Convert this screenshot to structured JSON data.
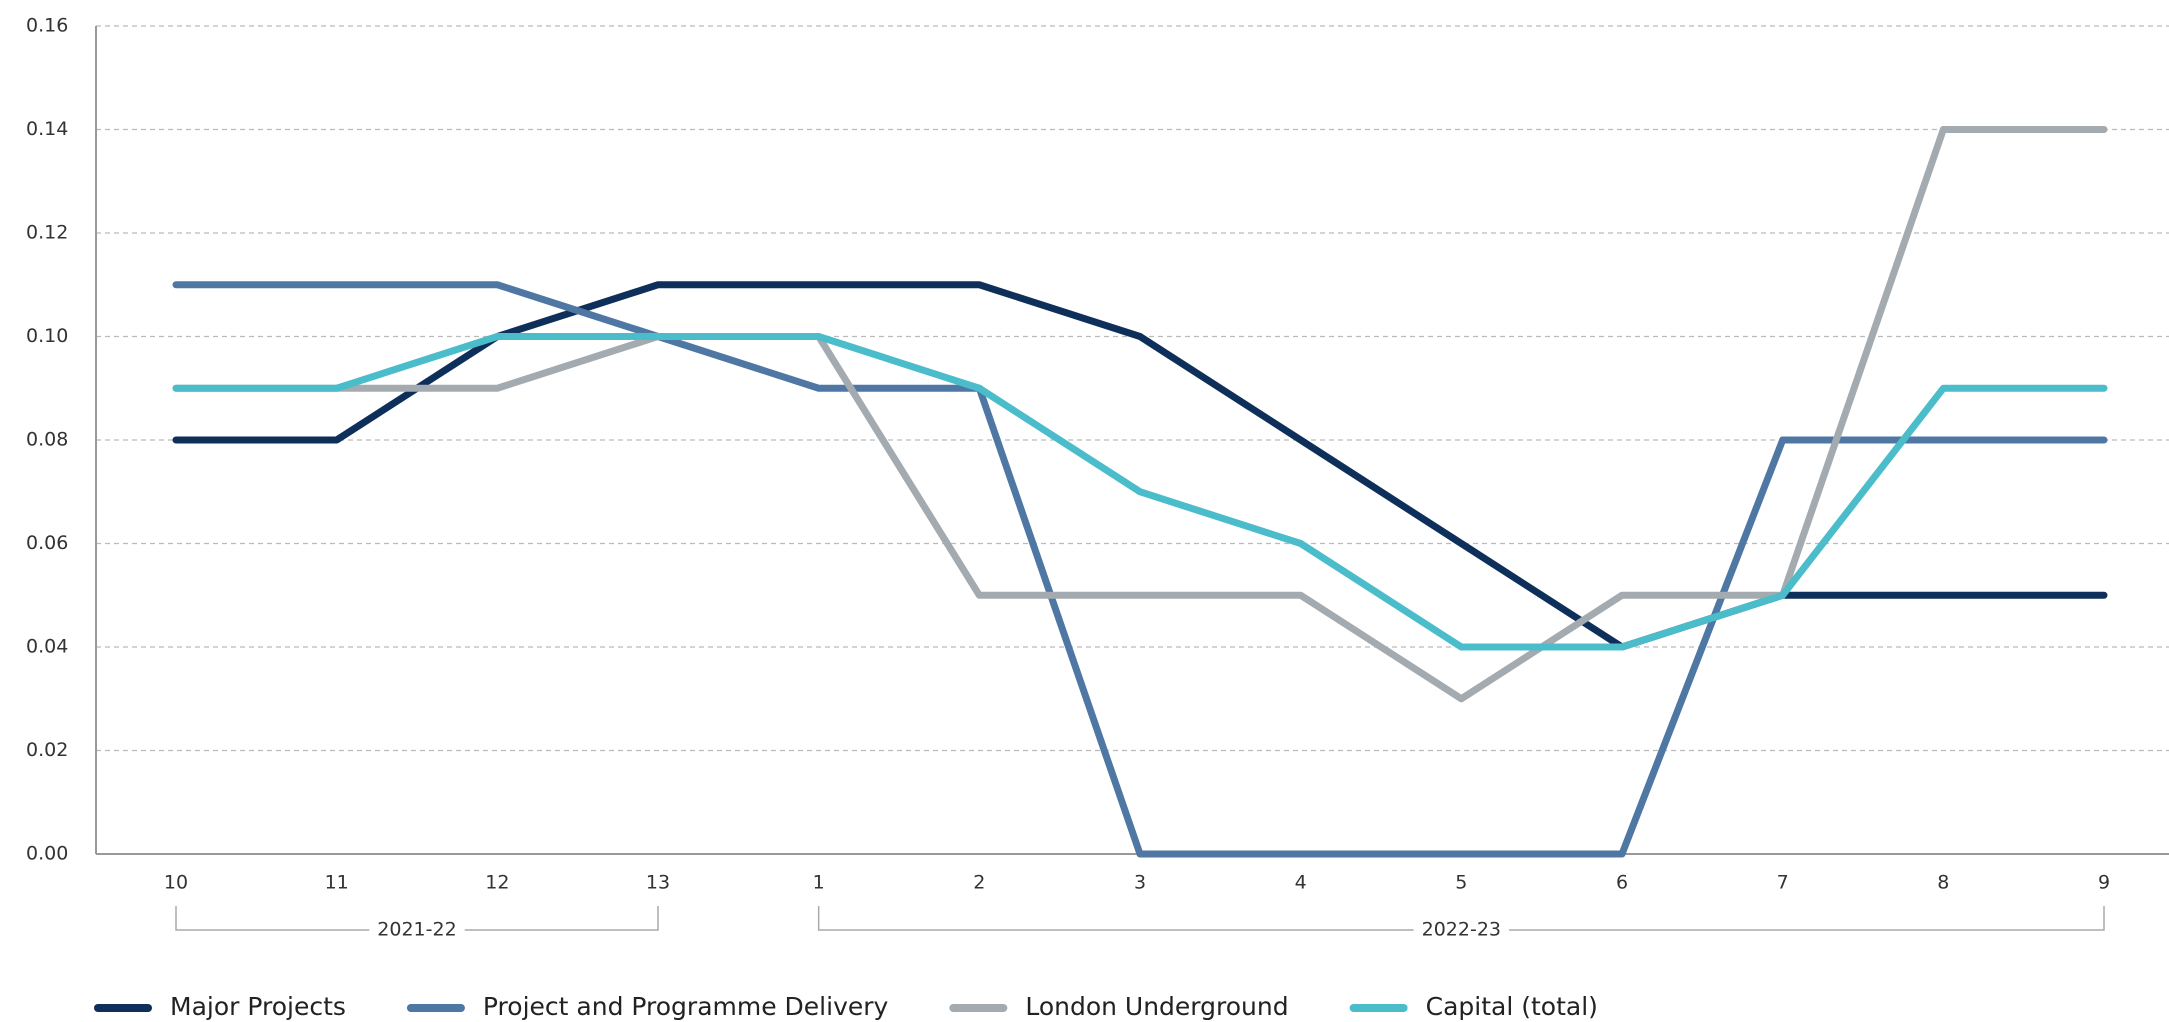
{
  "chart_data": {
    "type": "line",
    "categories": [
      "10",
      "11",
      "12",
      "13",
      "1",
      "2",
      "3",
      "4",
      "5",
      "6",
      "7",
      "8",
      "9"
    ],
    "x_groups": [
      {
        "label": "2021-22",
        "categories": [
          "10",
          "11",
          "12",
          "13"
        ]
      },
      {
        "label": "2022-23",
        "categories": [
          "1",
          "2",
          "3",
          "4",
          "5",
          "6",
          "7",
          "8",
          "9"
        ]
      }
    ],
    "series": [
      {
        "name": "Major Projects",
        "color": "#0d2f5a",
        "values": [
          0.08,
          0.08,
          0.1,
          0.11,
          0.11,
          0.11,
          0.1,
          0.08,
          0.06,
          0.04,
          0.05,
          0.05,
          0.05
        ]
      },
      {
        "name": "Project and Programme Delivery",
        "color": "#4f77a3",
        "values": [
          0.11,
          0.11,
          0.11,
          0.1,
          0.09,
          0.09,
          0.0,
          0.0,
          0.0,
          0.0,
          0.08,
          0.08,
          0.08
        ]
      },
      {
        "name": "London Underground",
        "color": "#a4abb0",
        "values": [
          0.09,
          0.09,
          0.09,
          0.1,
          0.1,
          0.05,
          0.05,
          0.05,
          0.03,
          0.05,
          0.05,
          0.14,
          0.14
        ]
      },
      {
        "name": "Capital (total)",
        "color": "#4bbcca",
        "values": [
          0.09,
          0.09,
          0.1,
          0.1,
          0.1,
          0.09,
          0.07,
          0.06,
          0.04,
          0.04,
          0.05,
          0.09,
          0.09
        ]
      }
    ],
    "ylim": [
      0,
      0.16
    ],
    "yticks": [
      {
        "value": 0,
        "label": "0.00"
      },
      0.02,
      0.04,
      0.06,
      0.08,
      {
        "value": 0.1,
        "label": "0.10"
      },
      0.12,
      0.14,
      0.16
    ],
    "grid": true,
    "legend": "bottom"
  }
}
